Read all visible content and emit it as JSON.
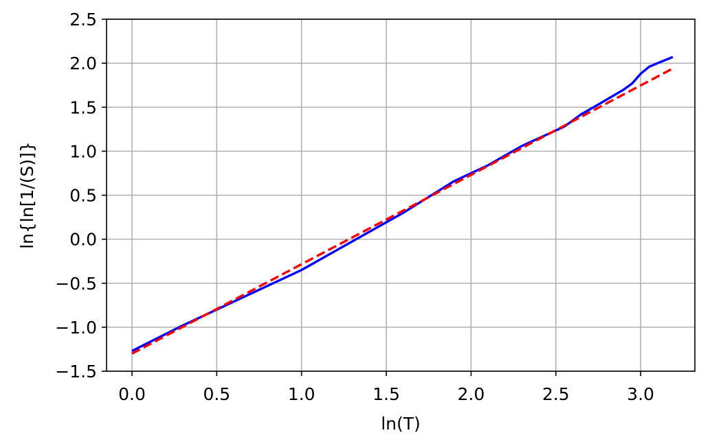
{
  "chart_data": {
    "type": "line",
    "title": "",
    "xlabel": "ln(T)",
    "ylabel": "ln{ln[1/(S)]}",
    "xlim": [
      -0.15,
      3.32
    ],
    "ylim": [
      -1.5,
      2.5
    ],
    "x_ticks": [
      0.0,
      0.5,
      1.0,
      1.5,
      2.0,
      2.5,
      3.0
    ],
    "x_tick_labels": [
      "0.0",
      "0.5",
      "1.0",
      "1.5",
      "2.0",
      "2.5",
      "3.0"
    ],
    "y_ticks": [
      -1.5,
      -1.0,
      -0.5,
      0.0,
      0.5,
      1.0,
      1.5,
      2.0,
      2.5
    ],
    "y_tick_labels": [
      "−1.5",
      "−1.0",
      "−0.5",
      "0.0",
      "0.5",
      "1.0",
      "1.5",
      "2.0",
      "2.5"
    ],
    "grid": true,
    "series": [
      {
        "color": "#0000ff",
        "style": "solid",
        "points": [
          [
            0.0,
            -1.27
          ],
          [
            0.3,
            -0.98
          ],
          [
            0.7,
            -0.62
          ],
          [
            1.0,
            -0.35
          ],
          [
            1.35,
            0.03
          ],
          [
            1.6,
            0.3
          ],
          [
            1.9,
            0.66
          ],
          [
            2.1,
            0.84
          ],
          [
            2.3,
            1.06
          ],
          [
            2.55,
            1.28
          ],
          [
            2.65,
            1.42
          ],
          [
            2.75,
            1.53
          ],
          [
            2.9,
            1.7
          ],
          [
            2.95,
            1.77
          ],
          [
            3.0,
            1.88
          ],
          [
            3.05,
            1.96
          ],
          [
            3.1,
            2.0
          ],
          [
            3.19,
            2.07
          ]
        ]
      },
      {
        "color": "#ff0000",
        "style": "dashed",
        "points": [
          [
            0.0,
            -1.3
          ],
          [
            3.19,
            1.94
          ]
        ]
      }
    ]
  }
}
